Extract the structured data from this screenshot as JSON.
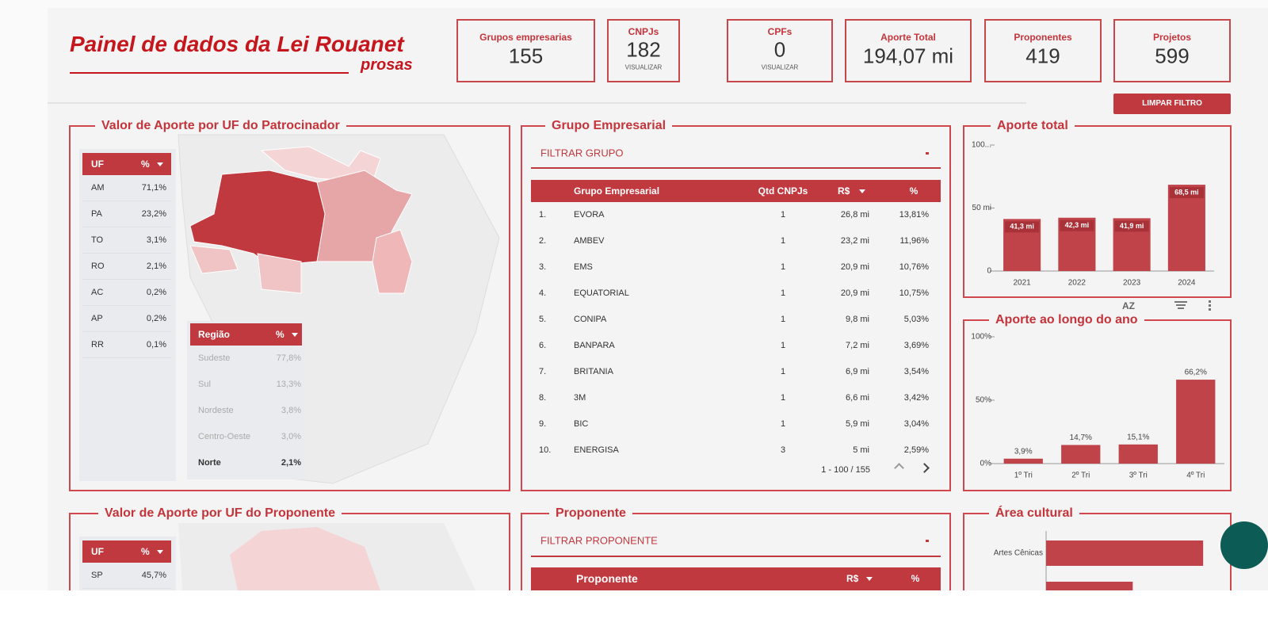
{
  "header": {
    "title": "Painel de dados da Lei Rouanet",
    "brand": "prosas"
  },
  "kpis": [
    {
      "label": "Grupos empresarias",
      "value": 155
    },
    {
      "label": "CNPJs",
      "value": 182,
      "action": "VISUALIZAR"
    },
    {
      "label": "CPFs",
      "value": 0,
      "action": "VISUALIZAR"
    },
    {
      "label": "Aporte Total",
      "value": "194,07 mi"
    },
    {
      "label": "Proponentes",
      "value": 419
    },
    {
      "label": "Projetos",
      "value": 599
    }
  ],
  "clear_filter": "LIMPAR FILTRO",
  "uf_patrocinador": {
    "title": "Valor de Aporte por UF do Patrocinador",
    "uf_table": {
      "headers": [
        "UF",
        "%"
      ],
      "rows": [
        [
          "AM",
          "71,1%"
        ],
        [
          "PA",
          "23,2%"
        ],
        [
          "TO",
          "3,1%"
        ],
        [
          "RO",
          "2,1%"
        ],
        [
          "AC",
          "0,2%"
        ],
        [
          "AP",
          "0,2%"
        ],
        [
          "RR",
          "0,1%"
        ]
      ]
    },
    "region_table": {
      "headers": [
        "Região",
        "%"
      ],
      "rows": [
        [
          "Sudeste",
          "77,8%"
        ],
        [
          "Sul",
          "13,3%"
        ],
        [
          "Nordeste",
          "3,8%"
        ],
        [
          "Centro-Oeste",
          "3,0%"
        ],
        [
          "Norte",
          "2,1%"
        ]
      ]
    }
  },
  "grupo_empresarial": {
    "title": "Grupo Empresarial",
    "filter": "FILTRAR GRUPO",
    "headers": [
      "Grupo Empresarial",
      "Qtd CNPJs",
      "R$",
      "%"
    ],
    "rows": [
      [
        "1.",
        "EVORA",
        1,
        "26,8 mi",
        "13,81%"
      ],
      [
        "2.",
        "AMBEV",
        1,
        "23,2 mi",
        "11,96%"
      ],
      [
        "3.",
        "EMS",
        1,
        "20,9 mi",
        "10,76%"
      ],
      [
        "4.",
        "EQUATORIAL",
        1,
        "20,9 mi",
        "10,75%"
      ],
      [
        "5.",
        "CONIPA",
        1,
        "9,8 mi",
        "5,03%"
      ],
      [
        "6.",
        "BANPARA",
        1,
        "7,2 mi",
        "3,69%"
      ],
      [
        "7.",
        "BRITANIA",
        1,
        "6,9 mi",
        "3,54%"
      ],
      [
        "8.",
        "3M",
        1,
        "6,6 mi",
        "3,42%"
      ],
      [
        "9.",
        "BIC",
        1,
        "5,9 mi",
        "3,04%"
      ],
      [
        "10.",
        "ENERGISA",
        3,
        "5 mi",
        "2,59%"
      ]
    ],
    "pagination": "1 - 100 / 155"
  },
  "chart_toolbar": {
    "sort": "AZ"
  },
  "chart_data": [
    {
      "type": "bar",
      "title": "Aporte total",
      "categories": [
        "2021",
        "2022",
        "2023",
        "2024"
      ],
      "values": [
        41.3,
        42.3,
        41.9,
        68.5
      ],
      "value_labels": [
        "41,3 mi",
        "42,3 mi",
        "41,9 mi",
        "68,5 mi"
      ],
      "color": "#c0434a",
      "ylim": [
        0,
        100
      ],
      "yticks": [
        0,
        {
          "value": 50,
          "label": "50 mi"
        },
        {
          "value": 100,
          "label": "100..."
        }
      ]
    },
    {
      "type": "bar",
      "title": "Aporte ao longo do ano",
      "categories": [
        "1º Tri",
        "2º Tri",
        "3º Tri",
        "4º Tri"
      ],
      "values": [
        3.9,
        14.7,
        15.1,
        66.2
      ],
      "value_labels": [
        "3,9%",
        "14,7%",
        "15,1%",
        "66,2%"
      ],
      "color": "#c0434a",
      "ylim": [
        0,
        100
      ],
      "yticks": [
        {
          "value": 0,
          "label": "0%"
        },
        {
          "value": 50,
          "label": "50%"
        },
        {
          "value": 100,
          "label": "100%"
        }
      ]
    },
    {
      "type": "hbar",
      "title": "Área cultural",
      "categories": [
        "Artes Cênicas",
        null
      ],
      "values": [
        58,
        32
      ],
      "color": "#c0434a",
      "xlim": [
        0,
        60
      ]
    }
  ],
  "uf_proponente": {
    "title": "Valor de Aporte por UF do Proponente",
    "uf_table": {
      "headers": [
        "UF",
        "%"
      ],
      "rows": [
        [
          "SP",
          "45,7%"
        ]
      ]
    }
  },
  "proponente": {
    "title": "Proponente",
    "filter": "FILTRAR PROPONENTE",
    "headers": [
      "Proponente",
      "R$",
      "%"
    ]
  }
}
